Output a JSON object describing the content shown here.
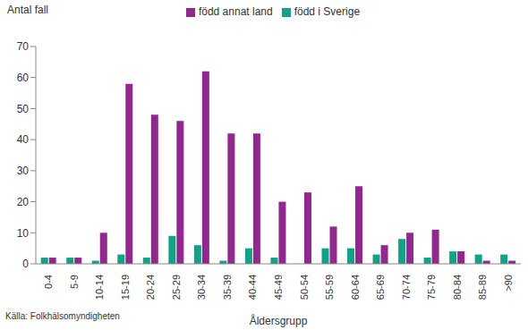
{
  "chart_data": {
    "type": "bar",
    "y_label": "Antal fall",
    "x_label": "Åldersgrupp",
    "annotations": [
      "Källa: Folkhälsomyndigheten"
    ],
    "categories": [
      "0-4",
      "5-9",
      "10-14",
      "15-19",
      "20-24",
      "25-29",
      "30-34",
      "35-39",
      "40-44",
      "45-49",
      "50-54",
      "55-59",
      "60-64",
      "65-69",
      "70-74",
      "75-79",
      "80-84",
      "85-89",
      ">90"
    ],
    "series": [
      {
        "name": "född i Sverige",
        "color": "#12a386",
        "values": [
          2,
          2,
          1,
          3,
          2,
          9,
          6,
          1,
          5,
          2,
          0,
          5,
          5,
          3,
          8,
          2,
          4,
          3,
          3
        ]
      },
      {
        "name": "född annat land",
        "color": "#93278f",
        "values": [
          2,
          2,
          10,
          58,
          48,
          46,
          62,
          42,
          42,
          20,
          23,
          12,
          25,
          6,
          10,
          11,
          4,
          1,
          1
        ]
      }
    ],
    "ylim": [
      0,
      70
    ],
    "yticks": [
      0,
      10,
      20,
      30,
      40,
      50,
      60,
      70
    ],
    "grid": false,
    "legend": "top"
  }
}
